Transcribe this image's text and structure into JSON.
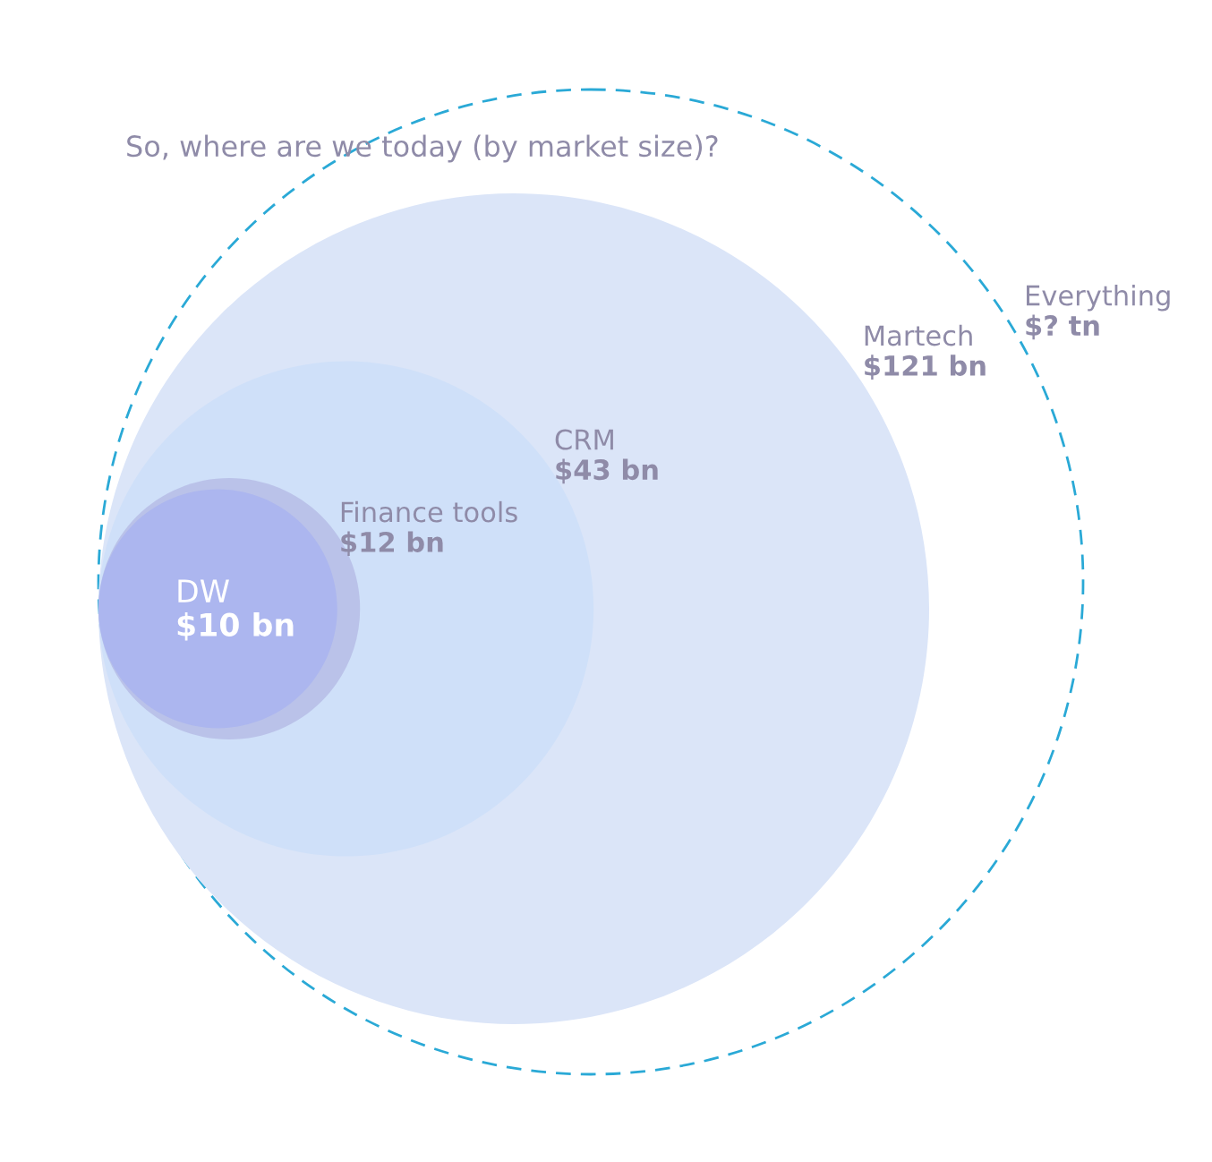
{
  "chart_data": {
    "type": "other",
    "title": "So, where are we today (by market size)?",
    "categories": [
      "Everything",
      "Martech",
      "CRM",
      "Finance tools",
      "DW"
    ],
    "values": [
      null,
      121,
      43,
      12,
      10
    ],
    "value_labels": [
      "$? tn",
      "$121 bn",
      "$43 bn",
      "$12 bn",
      "$10 bn"
    ]
  }
}
